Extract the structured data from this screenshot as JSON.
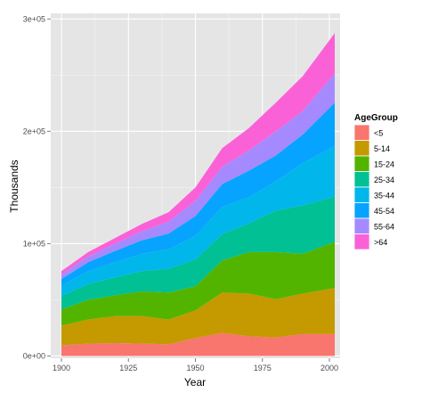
{
  "chart_data": {
    "type": "area",
    "stacked": true,
    "title": "",
    "xlabel": "Year",
    "ylabel": "Thousands",
    "xlim": [
      1896,
      2004
    ],
    "ylim": [
      -2000,
      305000
    ],
    "x_ticks": [
      1900,
      1925,
      1950,
      1975,
      2000
    ],
    "x_tick_labels": [
      "1900",
      "1925",
      "1950",
      "1975",
      "2000"
    ],
    "y_ticks": [
      0,
      100000,
      200000,
      300000
    ],
    "y_tick_labels": [
      "0e+00",
      "1e+05",
      "2e+05",
      "3e+05"
    ],
    "grid": true,
    "panel_background": "#e5e5e5",
    "grid_color": "#ffffff",
    "legend": {
      "title": "AgeGroup",
      "position": "right"
    },
    "x": [
      1900,
      1910,
      1920,
      1930,
      1940,
      1950,
      1960,
      1970,
      1980,
      1990,
      2002
    ],
    "series": [
      {
        "name": "<5",
        "color": "#f8766d",
        "values": [
          9500,
          11000,
          11500,
          11000,
          10500,
          16000,
          20500,
          17500,
          16500,
          19500,
          19500
        ]
      },
      {
        "name": "5-14",
        "color": "#c49a00",
        "values": [
          17500,
          21500,
          24000,
          24500,
          22000,
          24500,
          36000,
          38000,
          34000,
          36000,
          41000
        ]
      },
      {
        "name": "15-24",
        "color": "#53b400",
        "values": [
          14500,
          17500,
          18500,
          22000,
          24000,
          21500,
          28500,
          37000,
          42000,
          35500,
          41000
        ]
      },
      {
        "name": "25-34",
        "color": "#00c094",
        "values": [
          12000,
          14000,
          16000,
          18000,
          21000,
          24000,
          23500,
          25500,
          37000,
          43000,
          40500
        ]
      },
      {
        "name": "35-44",
        "color": "#00b6eb",
        "values": [
          9000,
          11500,
          13500,
          15500,
          17500,
          21000,
          24000,
          23500,
          26000,
          37500,
          45000
        ]
      },
      {
        "name": "45-54",
        "color": "#06a4ff",
        "values": [
          6000,
          8000,
          10000,
          12000,
          14000,
          17500,
          20500,
          23500,
          23000,
          25500,
          38500
        ]
      },
      {
        "name": "55-64",
        "color": "#a58aff",
        "values": [
          4000,
          5000,
          6500,
          8000,
          10500,
          13500,
          15500,
          18000,
          21500,
          21000,
          26000
        ]
      },
      {
        "name": ">64",
        "color": "#fb61d7",
        "values": [
          3000,
          4000,
          5000,
          6500,
          8500,
          12000,
          16500,
          20000,
          25500,
          31000,
          36000
        ]
      }
    ]
  }
}
